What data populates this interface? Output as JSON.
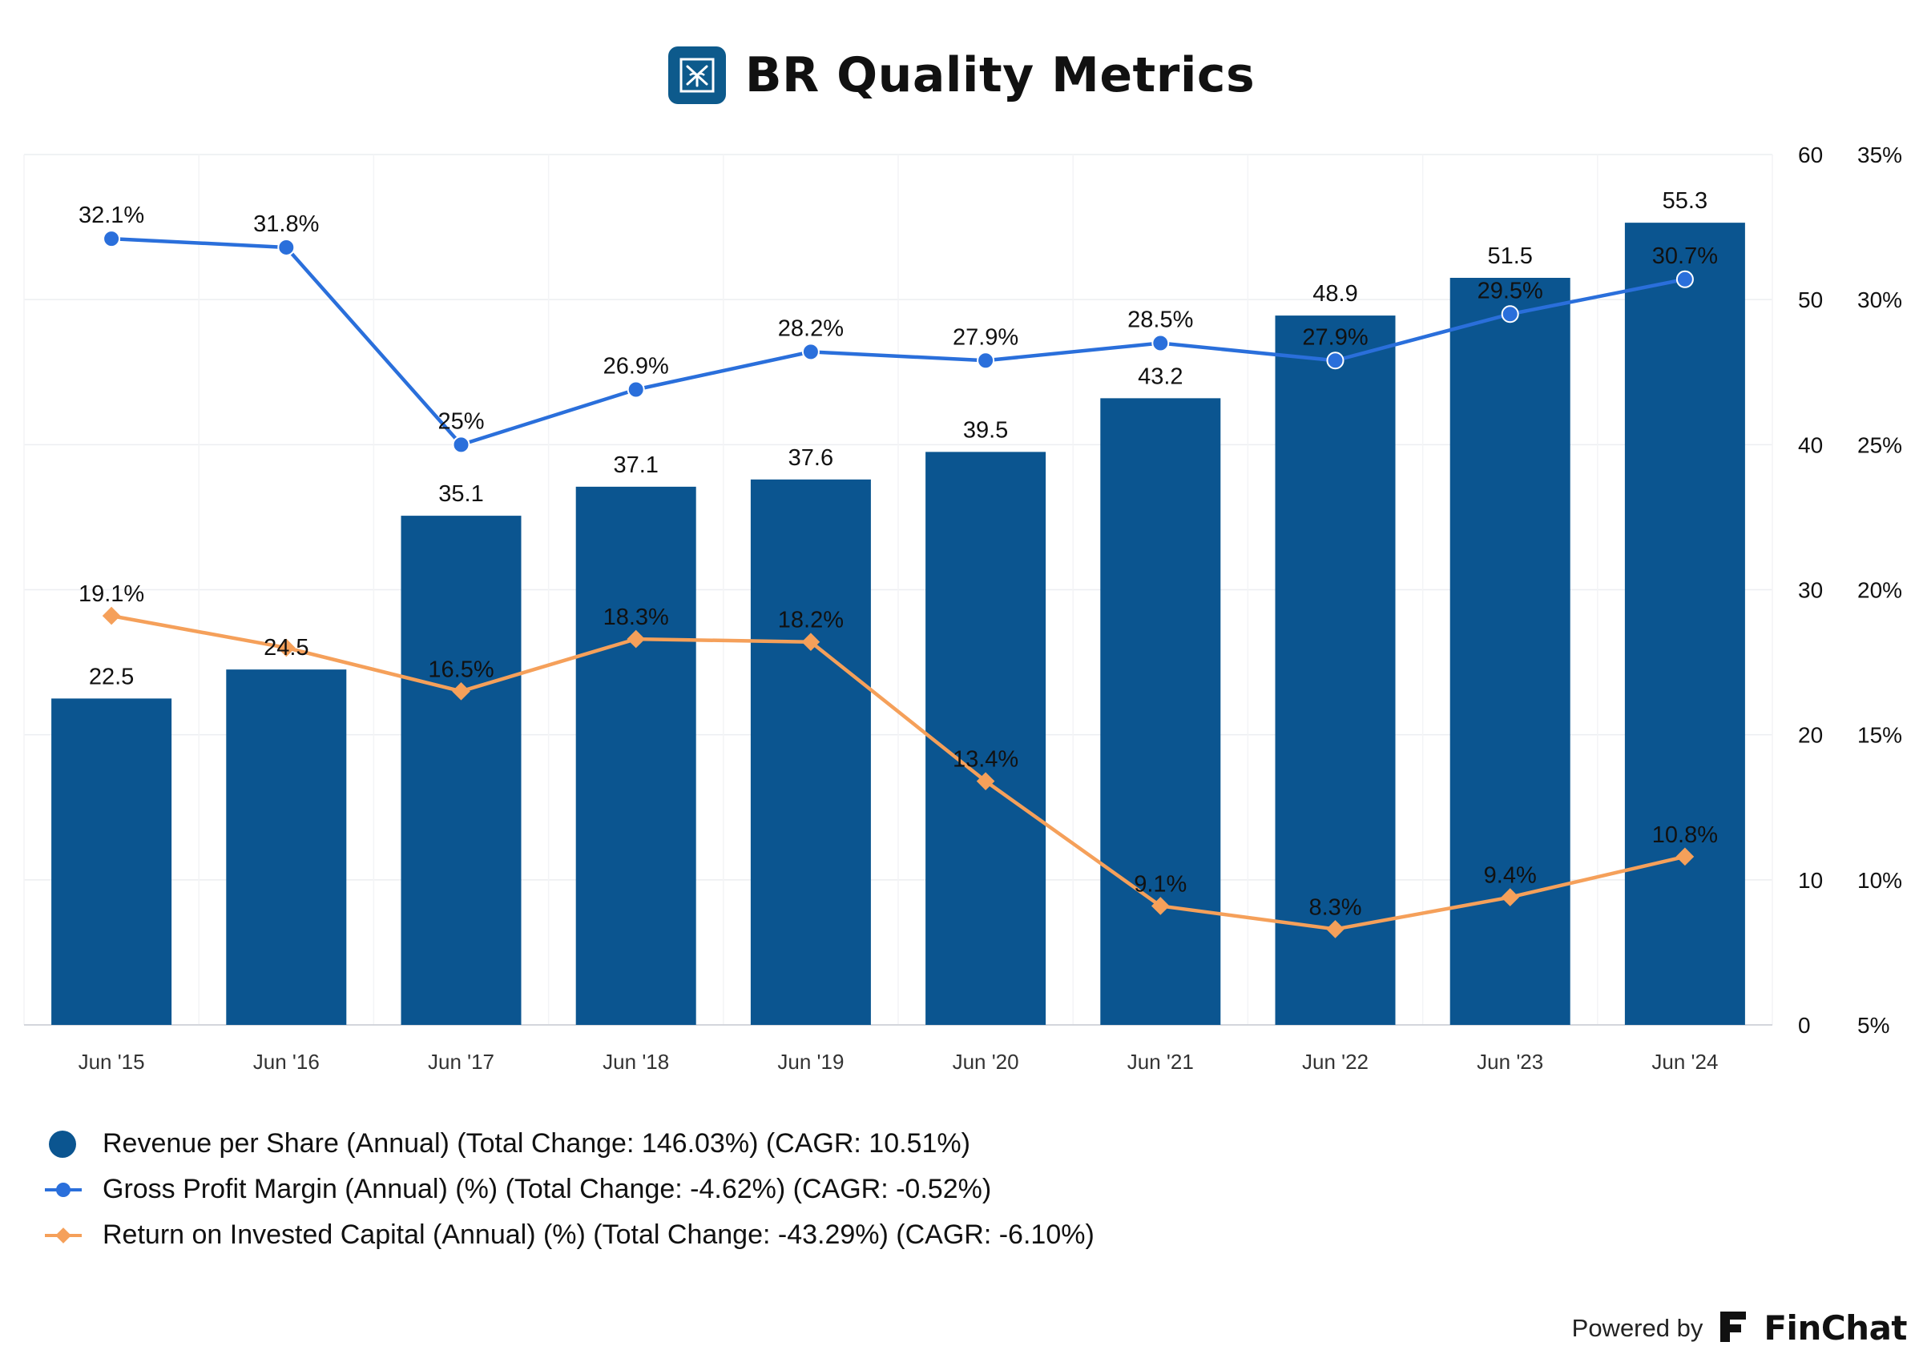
{
  "header": {
    "title": "BR Quality Metrics",
    "logo_icon": "br-logo-icon"
  },
  "chart_data": {
    "type": "bar",
    "title": "BR Quality Metrics",
    "categories": [
      "Jun '15",
      "Jun '16",
      "Jun '17",
      "Jun '18",
      "Jun '19",
      "Jun '20",
      "Jun '21",
      "Jun '22",
      "Jun '23",
      "Jun '24"
    ],
    "axes": {
      "left_value": {
        "min": 0,
        "max": 60,
        "ticks": [
          "0",
          "10",
          "20",
          "30",
          "40",
          "50",
          "60"
        ]
      },
      "right_percent": {
        "min": 5,
        "max": 35,
        "ticks": [
          "5%",
          "10%",
          "15%",
          "20%",
          "25%",
          "30%",
          "35%"
        ]
      }
    },
    "grid": true,
    "legend_position": "bottom-left",
    "series": [
      {
        "name": "Revenue per Share (Annual) (Total Change: 146.03%) (CAGR: 10.51%)",
        "type": "bar",
        "axis": "left_value",
        "color": "#0b5590",
        "values": [
          22.5,
          24.5,
          35.1,
          37.1,
          37.6,
          39.5,
          43.2,
          48.9,
          51.5,
          55.3
        ],
        "labels": [
          "22.5",
          "24.5",
          "35.1",
          "37.1",
          "37.6",
          "39.5",
          "43.2",
          "48.9",
          "51.5",
          "55.3"
        ]
      },
      {
        "name": "Gross Profit Margin (Annual) (%) (Total Change: -4.62%) (CAGR: -0.52%)",
        "type": "line",
        "marker": "circle",
        "axis": "right_percent",
        "color": "#2a6fdb",
        "values": [
          32.1,
          31.8,
          25.0,
          26.9,
          28.2,
          27.9,
          28.5,
          27.9,
          29.5,
          30.7
        ],
        "labels": [
          "32.1%",
          "31.8%",
          "25%",
          "26.9%",
          "28.2%",
          "27.9%",
          "28.5%",
          "27.9%",
          "29.5%",
          "30.7%"
        ]
      },
      {
        "name": "Return on Invested Capital (Annual) (%) (Total Change: -43.29%) (CAGR: -6.10%)",
        "type": "line",
        "marker": "diamond",
        "axis": "right_percent",
        "color": "#f5a05a",
        "values": [
          19.1,
          18.0,
          16.5,
          18.3,
          18.2,
          13.4,
          9.1,
          8.3,
          9.4,
          10.8
        ],
        "labels": [
          "19.1%",
          "",
          "16.5%",
          "18.3%",
          "18.2%",
          "13.4%",
          "9.1%",
          "8.3%",
          "9.4%",
          "10.8%"
        ]
      }
    ]
  },
  "footer": {
    "powered_by": "Powered by",
    "brand": "FinChat",
    "brand_icon": "finchat-logo-icon"
  }
}
